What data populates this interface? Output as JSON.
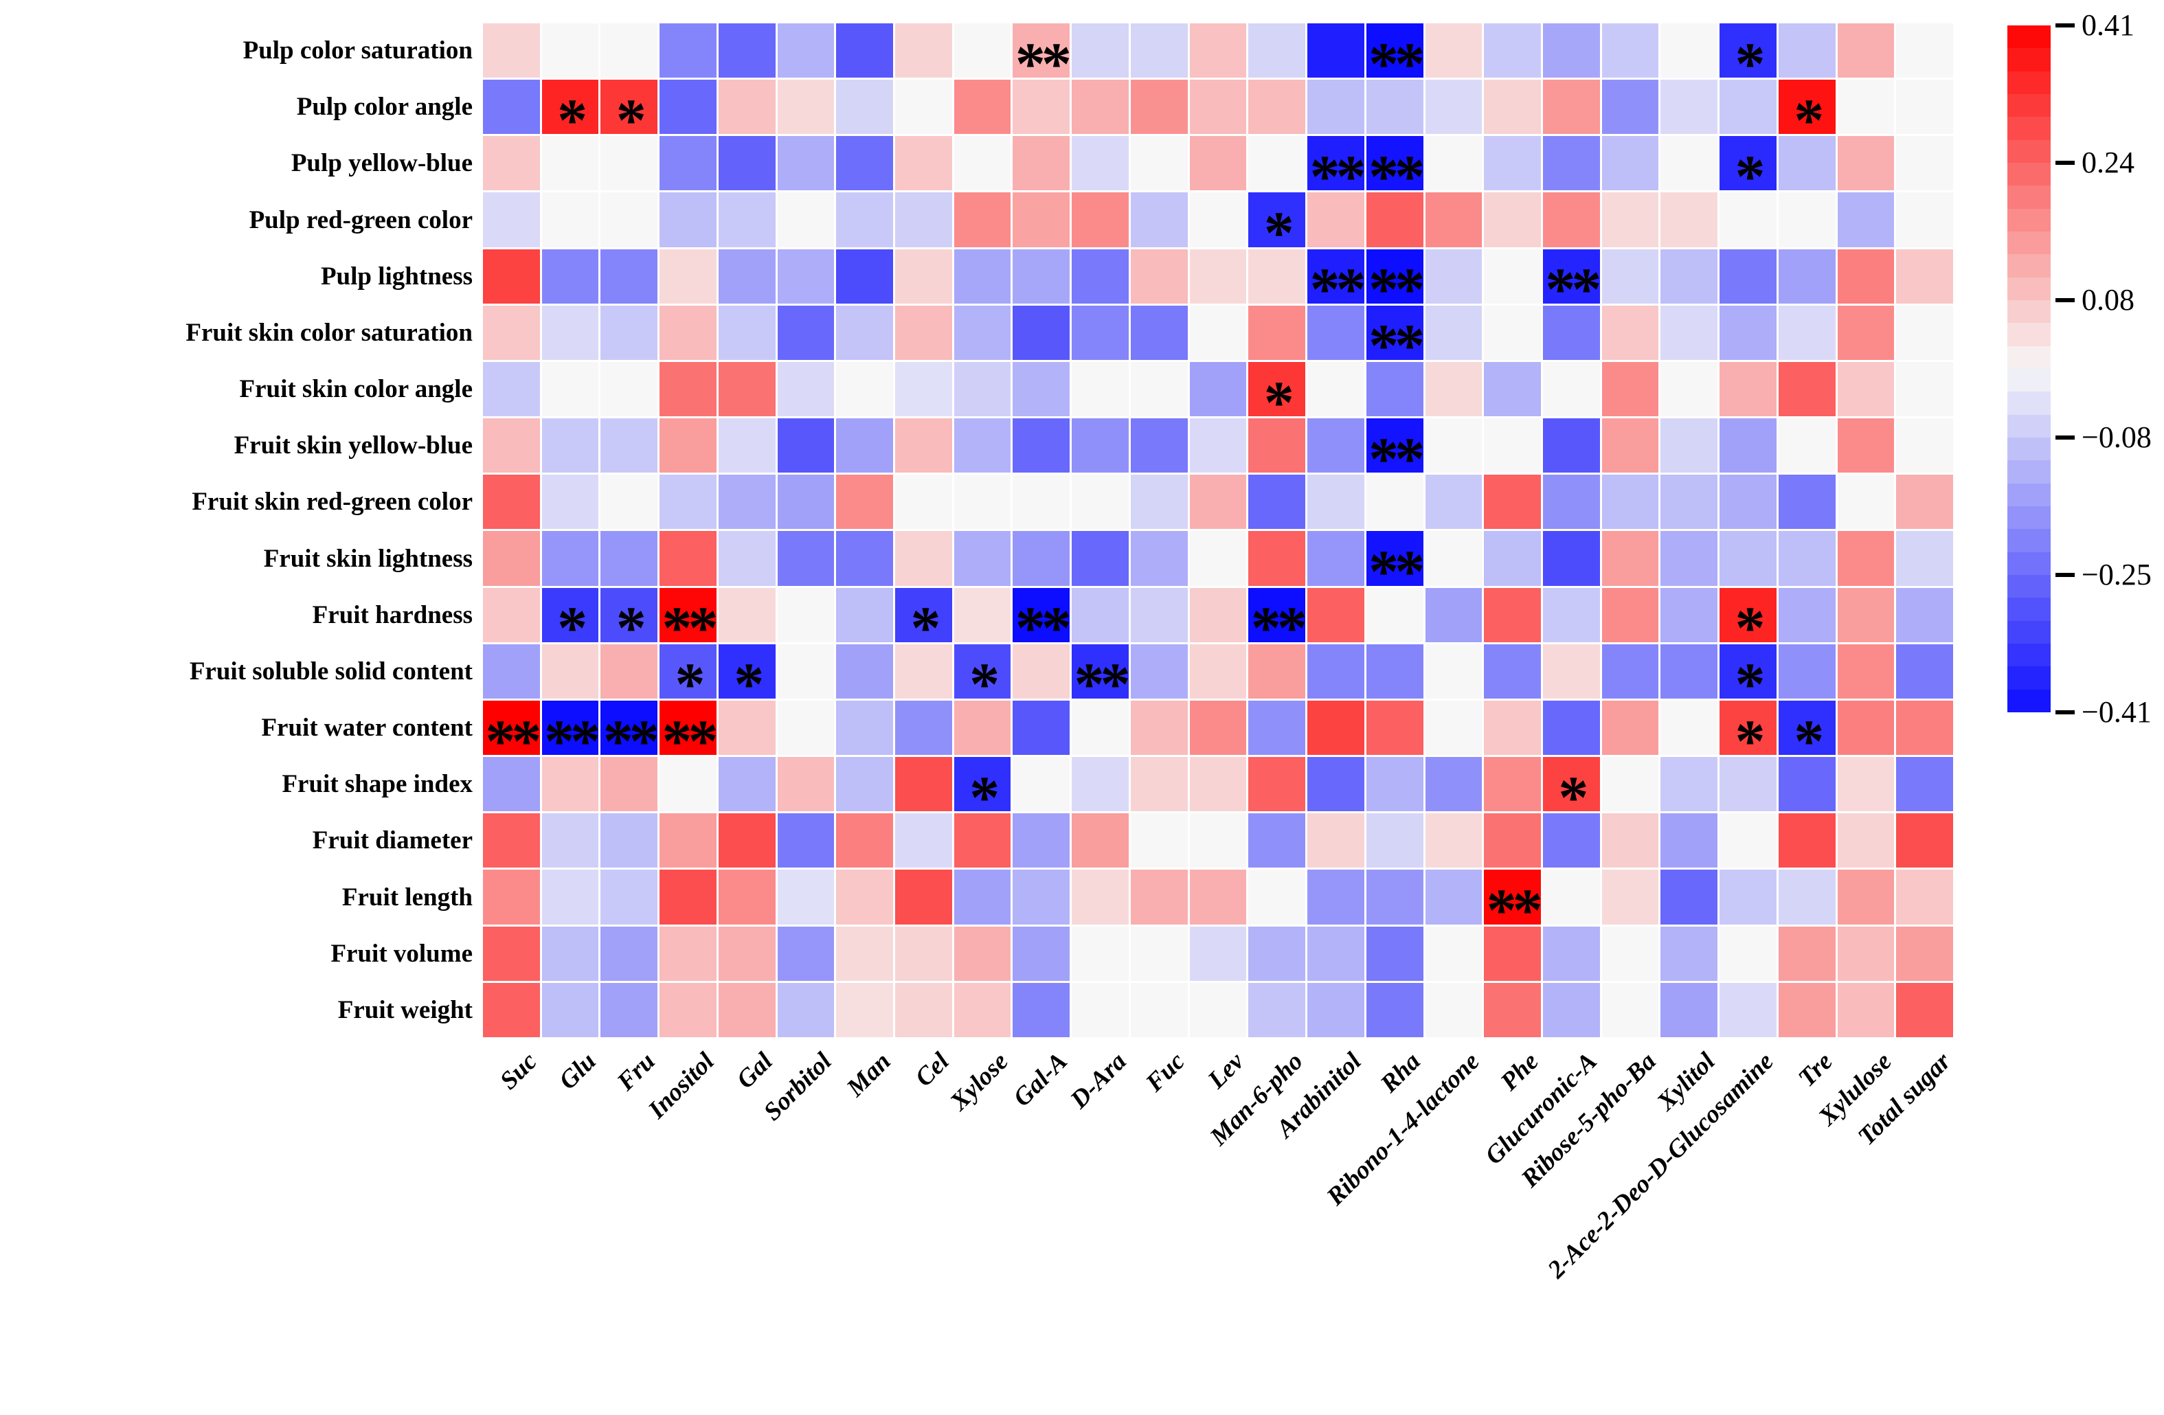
{
  "figure": {
    "background": "#ffffff",
    "accent_positive": "#ff0000",
    "accent_negative": "#0d0dff"
  },
  "chart_data": {
    "type": "heatmap",
    "title": "",
    "xlabel": "",
    "ylabel": "",
    "legend_position": "right",
    "grid": false,
    "rows": [
      "Pulp color saturation",
      "Pulp color angle",
      "Pulp yellow-blue",
      "Pulp red-green color",
      "Pulp lightness",
      "Fruit skin color saturation",
      "Fruit skin color angle",
      "Fruit skin yellow-blue",
      "Fruit skin red-green color",
      "Fruit skin lightness",
      "Fruit hardness",
      "Fruit soluble solid content",
      "Fruit water content",
      "Fruit shape index",
      "Fruit diameter",
      "Fruit length",
      "Fruit volume",
      "Fruit weight"
    ],
    "columns": [
      "Suc",
      "Glu",
      "Fru",
      "Inositol",
      "Gal",
      "Sorbitol",
      "Man",
      "Cel",
      "Xylose",
      "Gal-A",
      "D-Ara",
      "Fuc",
      "Lev",
      "Man-6-pho",
      "Arabinitol",
      "Rha",
      "Ribono-1-4-lactone",
      "Phe",
      "Glucuronic-A",
      "Ribose-5-pho-Ba",
      "Xylitol",
      "2-Ace-2-Deo-D-Glucosamine",
      "Tre",
      "Xylulose",
      "Total sugar"
    ],
    "values": [
      [
        0.06,
        0.0,
        0.0,
        -0.2,
        -0.25,
        -0.12,
        -0.28,
        0.06,
        0.0,
        0.12,
        -0.06,
        -0.06,
        0.09,
        -0.06,
        -0.38,
        -0.41,
        0.05,
        -0.08,
        -0.14,
        -0.08,
        0.0,
        -0.35,
        -0.09,
        0.12,
        0.0
      ],
      [
        -0.22,
        0.35,
        0.32,
        -0.25,
        0.09,
        0.05,
        -0.06,
        0.0,
        0.18,
        0.08,
        0.12,
        0.17,
        0.1,
        0.1,
        -0.1,
        -0.09,
        -0.05,
        0.06,
        0.16,
        -0.18,
        -0.05,
        -0.08,
        0.38,
        0.0,
        0.0
      ],
      [
        0.08,
        0.0,
        0.0,
        -0.2,
        -0.26,
        -0.13,
        -0.24,
        0.08,
        0.0,
        0.12,
        -0.05,
        0.0,
        0.12,
        0.0,
        -0.38,
        -0.4,
        0.0,
        -0.08,
        -0.2,
        -0.1,
        0.0,
        -0.36,
        -0.1,
        0.12,
        0.0
      ],
      [
        -0.05,
        0.0,
        0.0,
        -0.1,
        -0.08,
        0.0,
        -0.08,
        -0.07,
        0.18,
        0.14,
        0.18,
        -0.09,
        0.0,
        -0.35,
        0.1,
        0.25,
        0.18,
        0.06,
        0.18,
        0.05,
        0.05,
        0.0,
        0.0,
        -0.12,
        0.0
      ],
      [
        0.3,
        -0.2,
        -0.2,
        0.05,
        -0.15,
        -0.13,
        -0.3,
        0.06,
        -0.14,
        -0.14,
        -0.22,
        0.1,
        0.05,
        0.05,
        -0.38,
        -0.41,
        -0.07,
        0.0,
        -0.37,
        -0.06,
        -0.1,
        -0.22,
        -0.15,
        0.2,
        0.08
      ],
      [
        0.08,
        -0.05,
        -0.08,
        0.1,
        -0.08,
        -0.25,
        -0.09,
        0.1,
        -0.12,
        -0.28,
        -0.2,
        -0.22,
        0.0,
        0.18,
        -0.2,
        -0.38,
        -0.06,
        0.0,
        -0.22,
        0.08,
        -0.05,
        -0.13,
        -0.05,
        0.18,
        0.0
      ],
      [
        -0.08,
        0.0,
        0.0,
        0.22,
        0.22,
        -0.05,
        0.0,
        -0.04,
        -0.07,
        -0.12,
        0.0,
        0.0,
        -0.15,
        0.32,
        0.0,
        -0.2,
        0.05,
        -0.12,
        0.0,
        0.18,
        0.0,
        0.12,
        0.25,
        0.08,
        0.0
      ],
      [
        0.1,
        -0.08,
        -0.08,
        0.15,
        -0.05,
        -0.28,
        -0.15,
        0.1,
        -0.12,
        -0.25,
        -0.18,
        -0.22,
        -0.05,
        0.22,
        -0.18,
        -0.4,
        0.0,
        0.0,
        -0.28,
        0.15,
        -0.06,
        -0.15,
        0.0,
        0.18,
        0.0
      ],
      [
        0.25,
        -0.05,
        0.0,
        -0.08,
        -0.13,
        -0.15,
        0.18,
        0.0,
        0.0,
        0.0,
        0.0,
        -0.06,
        0.12,
        -0.25,
        -0.06,
        0.0,
        -0.08,
        0.25,
        -0.18,
        -0.1,
        -0.1,
        -0.13,
        -0.22,
        0.0,
        0.12
      ],
      [
        0.15,
        -0.17,
        -0.17,
        0.25,
        -0.07,
        -0.22,
        -0.22,
        0.06,
        -0.13,
        -0.17,
        -0.25,
        -0.13,
        0.0,
        0.25,
        -0.17,
        -0.4,
        0.0,
        -0.1,
        -0.3,
        0.15,
        -0.13,
        -0.1,
        -0.1,
        0.18,
        -0.06
      ],
      [
        0.08,
        -0.33,
        -0.3,
        0.4,
        0.05,
        0.0,
        -0.1,
        -0.32,
        0.04,
        -0.41,
        -0.09,
        -0.07,
        0.07,
        -0.41,
        0.25,
        0.0,
        -0.15,
        0.25,
        -0.08,
        0.18,
        -0.13,
        0.35,
        -0.13,
        0.15,
        -0.13
      ],
      [
        -0.15,
        0.06,
        0.12,
        -0.28,
        -0.35,
        0.0,
        -0.15,
        0.05,
        -0.3,
        0.06,
        -0.35,
        -0.13,
        0.06,
        0.15,
        -0.2,
        -0.2,
        0.0,
        -0.2,
        0.05,
        -0.2,
        -0.2,
        -0.35,
        -0.18,
        0.18,
        -0.22
      ],
      [
        0.41,
        -0.41,
        -0.41,
        0.41,
        0.08,
        0.0,
        -0.1,
        -0.18,
        0.12,
        -0.28,
        0.0,
        0.1,
        0.18,
        -0.18,
        0.3,
        0.25,
        0.0,
        0.08,
        -0.25,
        0.15,
        0.0,
        0.3,
        -0.35,
        0.2,
        0.2
      ],
      [
        -0.15,
        0.08,
        0.12,
        0.0,
        -0.12,
        0.1,
        -0.1,
        0.28,
        -0.35,
        0.0,
        -0.05,
        0.06,
        0.06,
        0.25,
        -0.25,
        -0.12,
        -0.18,
        0.18,
        0.3,
        0.0,
        -0.08,
        -0.07,
        -0.25,
        0.05,
        -0.22
      ],
      [
        0.25,
        -0.07,
        -0.1,
        0.15,
        0.28,
        -0.22,
        0.2,
        -0.05,
        0.25,
        -0.15,
        0.15,
        0.0,
        0.0,
        -0.18,
        0.06,
        -0.06,
        0.05,
        0.22,
        -0.22,
        0.07,
        -0.15,
        0.0,
        0.28,
        0.06,
        0.28
      ],
      [
        0.18,
        -0.05,
        -0.08,
        0.28,
        0.18,
        -0.04,
        0.08,
        0.28,
        -0.15,
        -0.12,
        0.05,
        0.12,
        0.12,
        0.0,
        -0.17,
        -0.17,
        -0.12,
        0.4,
        0.0,
        0.05,
        -0.25,
        -0.08,
        -0.06,
        0.15,
        0.08
      ],
      [
        0.25,
        -0.1,
        -0.15,
        0.1,
        0.12,
        -0.17,
        0.05,
        0.06,
        0.12,
        -0.15,
        0.0,
        0.0,
        -0.05,
        -0.12,
        -0.12,
        -0.22,
        0.0,
        0.25,
        -0.12,
        0.0,
        -0.12,
        0.0,
        0.15,
        0.1,
        0.15
      ],
      [
        0.25,
        -0.1,
        -0.15,
        0.1,
        0.12,
        -0.1,
        0.04,
        0.06,
        0.08,
        -0.2,
        0.0,
        0.0,
        0.0,
        -0.09,
        -0.12,
        -0.22,
        0.0,
        0.22,
        -0.12,
        0.0,
        -0.15,
        -0.05,
        0.15,
        0.1,
        0.25
      ]
    ],
    "significance": [
      [
        "",
        "",
        "",
        "",
        "",
        "",
        "",
        "",
        "",
        "**",
        "",
        "",
        "",
        "",
        "",
        "**",
        "",
        "",
        "",
        "",
        "",
        "*",
        "",
        "",
        ""
      ],
      [
        "",
        "*",
        "*",
        "",
        "",
        "",
        "",
        "",
        "",
        "",
        "",
        "",
        "",
        "",
        "",
        "",
        "",
        "",
        "",
        "",
        "",
        "",
        "*",
        "",
        ""
      ],
      [
        "",
        "",
        "",
        "",
        "",
        "",
        "",
        "",
        "",
        "",
        "",
        "",
        "",
        "",
        "**",
        "**",
        "",
        "",
        "",
        "",
        "",
        "*",
        "",
        "",
        ""
      ],
      [
        "",
        "",
        "",
        "",
        "",
        "",
        "",
        "",
        "",
        "",
        "",
        "",
        "",
        "*",
        "",
        "",
        "",
        "",
        "",
        "",
        "",
        "",
        "",
        "",
        ""
      ],
      [
        "",
        "",
        "",
        "",
        "",
        "",
        "",
        "",
        "",
        "",
        "",
        "",
        "",
        "",
        "**",
        "**",
        "",
        "",
        "**",
        "",
        "",
        "",
        "",
        "",
        ""
      ],
      [
        "",
        "",
        "",
        "",
        "",
        "",
        "",
        "",
        "",
        "",
        "",
        "",
        "",
        "",
        "",
        "**",
        "",
        "",
        "",
        "",
        "",
        "",
        "",
        "",
        ""
      ],
      [
        "",
        "",
        "",
        "",
        "",
        "",
        "",
        "",
        "",
        "",
        "",
        "",
        "",
        "*",
        "",
        "",
        "",
        "",
        "",
        "",
        "",
        "",
        "",
        "",
        ""
      ],
      [
        "",
        "",
        "",
        "",
        "",
        "",
        "",
        "",
        "",
        "",
        "",
        "",
        "",
        "",
        "",
        "**",
        "",
        "",
        "",
        "",
        "",
        "",
        "",
        "",
        ""
      ],
      [
        "",
        "",
        "",
        "",
        "",
        "",
        "",
        "",
        "",
        "",
        "",
        "",
        "",
        "",
        "",
        "",
        "",
        "",
        "",
        "",
        "",
        "",
        "",
        "",
        ""
      ],
      [
        "",
        "",
        "",
        "",
        "",
        "",
        "",
        "",
        "",
        "",
        "",
        "",
        "",
        "",
        "",
        "**",
        "",
        "",
        "",
        "",
        "",
        "",
        "",
        "",
        ""
      ],
      [
        "",
        "*",
        "*",
        "**",
        "",
        "",
        "",
        "*",
        "",
        "**",
        "",
        "",
        "",
        "**",
        "",
        "",
        "",
        "",
        "",
        "",
        "",
        "*",
        "",
        "",
        ""
      ],
      [
        "",
        "",
        "",
        "*",
        "*",
        "",
        "",
        "",
        "*",
        "",
        "**",
        "",
        "",
        "",
        "",
        "",
        "",
        "",
        "",
        "",
        "",
        "*",
        "",
        "",
        ""
      ],
      [
        "**",
        "**",
        "**",
        "**",
        "",
        "",
        "",
        "",
        "",
        "",
        "",
        "",
        "",
        "",
        "",
        "",
        "",
        "",
        "",
        "",
        "",
        "*",
        "*",
        "",
        ""
      ],
      [
        "",
        "",
        "",
        "",
        "",
        "",
        "",
        "",
        "*",
        "",
        "",
        "",
        "",
        "",
        "",
        "",
        "",
        "",
        "*",
        "",
        "",
        "",
        "",
        "",
        ""
      ],
      [
        "",
        "",
        "",
        "",
        "",
        "",
        "",
        "",
        "",
        "",
        "",
        "",
        "",
        "",
        "",
        "",
        "",
        "",
        "",
        "",
        "",
        "",
        "",
        "",
        ""
      ],
      [
        "",
        "",
        "",
        "",
        "",
        "",
        "",
        "",
        "",
        "",
        "",
        "",
        "",
        "",
        "",
        "",
        "",
        "**",
        "",
        "",
        "",
        "",
        "",
        "",
        ""
      ],
      [
        "",
        "",
        "",
        "",
        "",
        "",
        "",
        "",
        "",
        "",
        "",
        "",
        "",
        "",
        "",
        "",
        "",
        "",
        "",
        "",
        "",
        "",
        "",
        "",
        ""
      ],
      [
        "",
        "",
        "",
        "",
        "",
        "",
        "",
        "",
        "",
        "",
        "",
        "",
        "",
        "",
        "",
        "",
        "",
        "",
        "",
        "",
        "",
        "",
        "",
        "",
        ""
      ]
    ],
    "colorbar": {
      "vmin": -0.41,
      "vmax": 0.41,
      "steps": 30,
      "tick_labels": [
        "0.41",
        "0.24",
        "0.08",
        "-0.08",
        "-0.25",
        "-0.41"
      ],
      "color_positive": "#ff0000",
      "color_mid": "#f7f7f7",
      "color_negative": "#0d0dff"
    },
    "significance_glyph": "*"
  }
}
